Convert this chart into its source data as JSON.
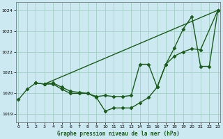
{
  "title": "Graphe pression niveau de la mer (hPa)",
  "bg_color": "#cce8f0",
  "grid_color": "#99ccbb",
  "line_color": "#1a5c1a",
  "marker": "D",
  "markersize": 2.5,
  "linewidth": 1.0,
  "xlim": [
    -0.3,
    23.3
  ],
  "ylim": [
    1018.6,
    1024.4
  ],
  "yticks": [
    1019,
    1020,
    1021,
    1022,
    1023,
    1024
  ],
  "xticks": [
    0,
    1,
    2,
    3,
    4,
    5,
    6,
    7,
    8,
    9,
    10,
    11,
    12,
    13,
    14,
    15,
    16,
    17,
    18,
    19,
    20,
    21,
    22,
    23
  ],
  "series": [
    {
      "x": [
        0,
        1,
        2,
        3,
        4,
        5,
        6,
        7,
        8,
        9,
        10,
        11,
        12,
        13,
        14,
        15,
        16,
        17,
        18,
        19,
        20,
        21,
        22,
        23
      ],
      "y": [
        1019.7,
        1020.2,
        1020.5,
        1020.45,
        1020.45,
        1020.2,
        1020.0,
        1020.0,
        1020.0,
        1019.8,
        1019.15,
        1019.3,
        1019.3,
        1019.3,
        1019.55,
        1019.8,
        1020.3,
        1021.4,
        1022.2,
        1023.1,
        1023.7,
        1021.3,
        1021.3,
        1024.0
      ]
    },
    {
      "x": [
        2,
        3,
        23
      ],
      "y": [
        1020.5,
        1020.45,
        1024.0
      ]
    },
    {
      "x": [
        3,
        4,
        5,
        6,
        7,
        8,
        9,
        10,
        11,
        12,
        13,
        14,
        15,
        16,
        17,
        18,
        19,
        20,
        21,
        23
      ],
      "y": [
        1020.45,
        1020.5,
        1020.3,
        1020.1,
        1020.05,
        1020.0,
        1019.85,
        1019.9,
        1019.85,
        1019.85,
        1019.9,
        1021.4,
        1021.4,
        1020.3,
        1021.4,
        1021.8,
        1022.0,
        1022.15,
        1022.1,
        1024.0
      ]
    }
  ]
}
